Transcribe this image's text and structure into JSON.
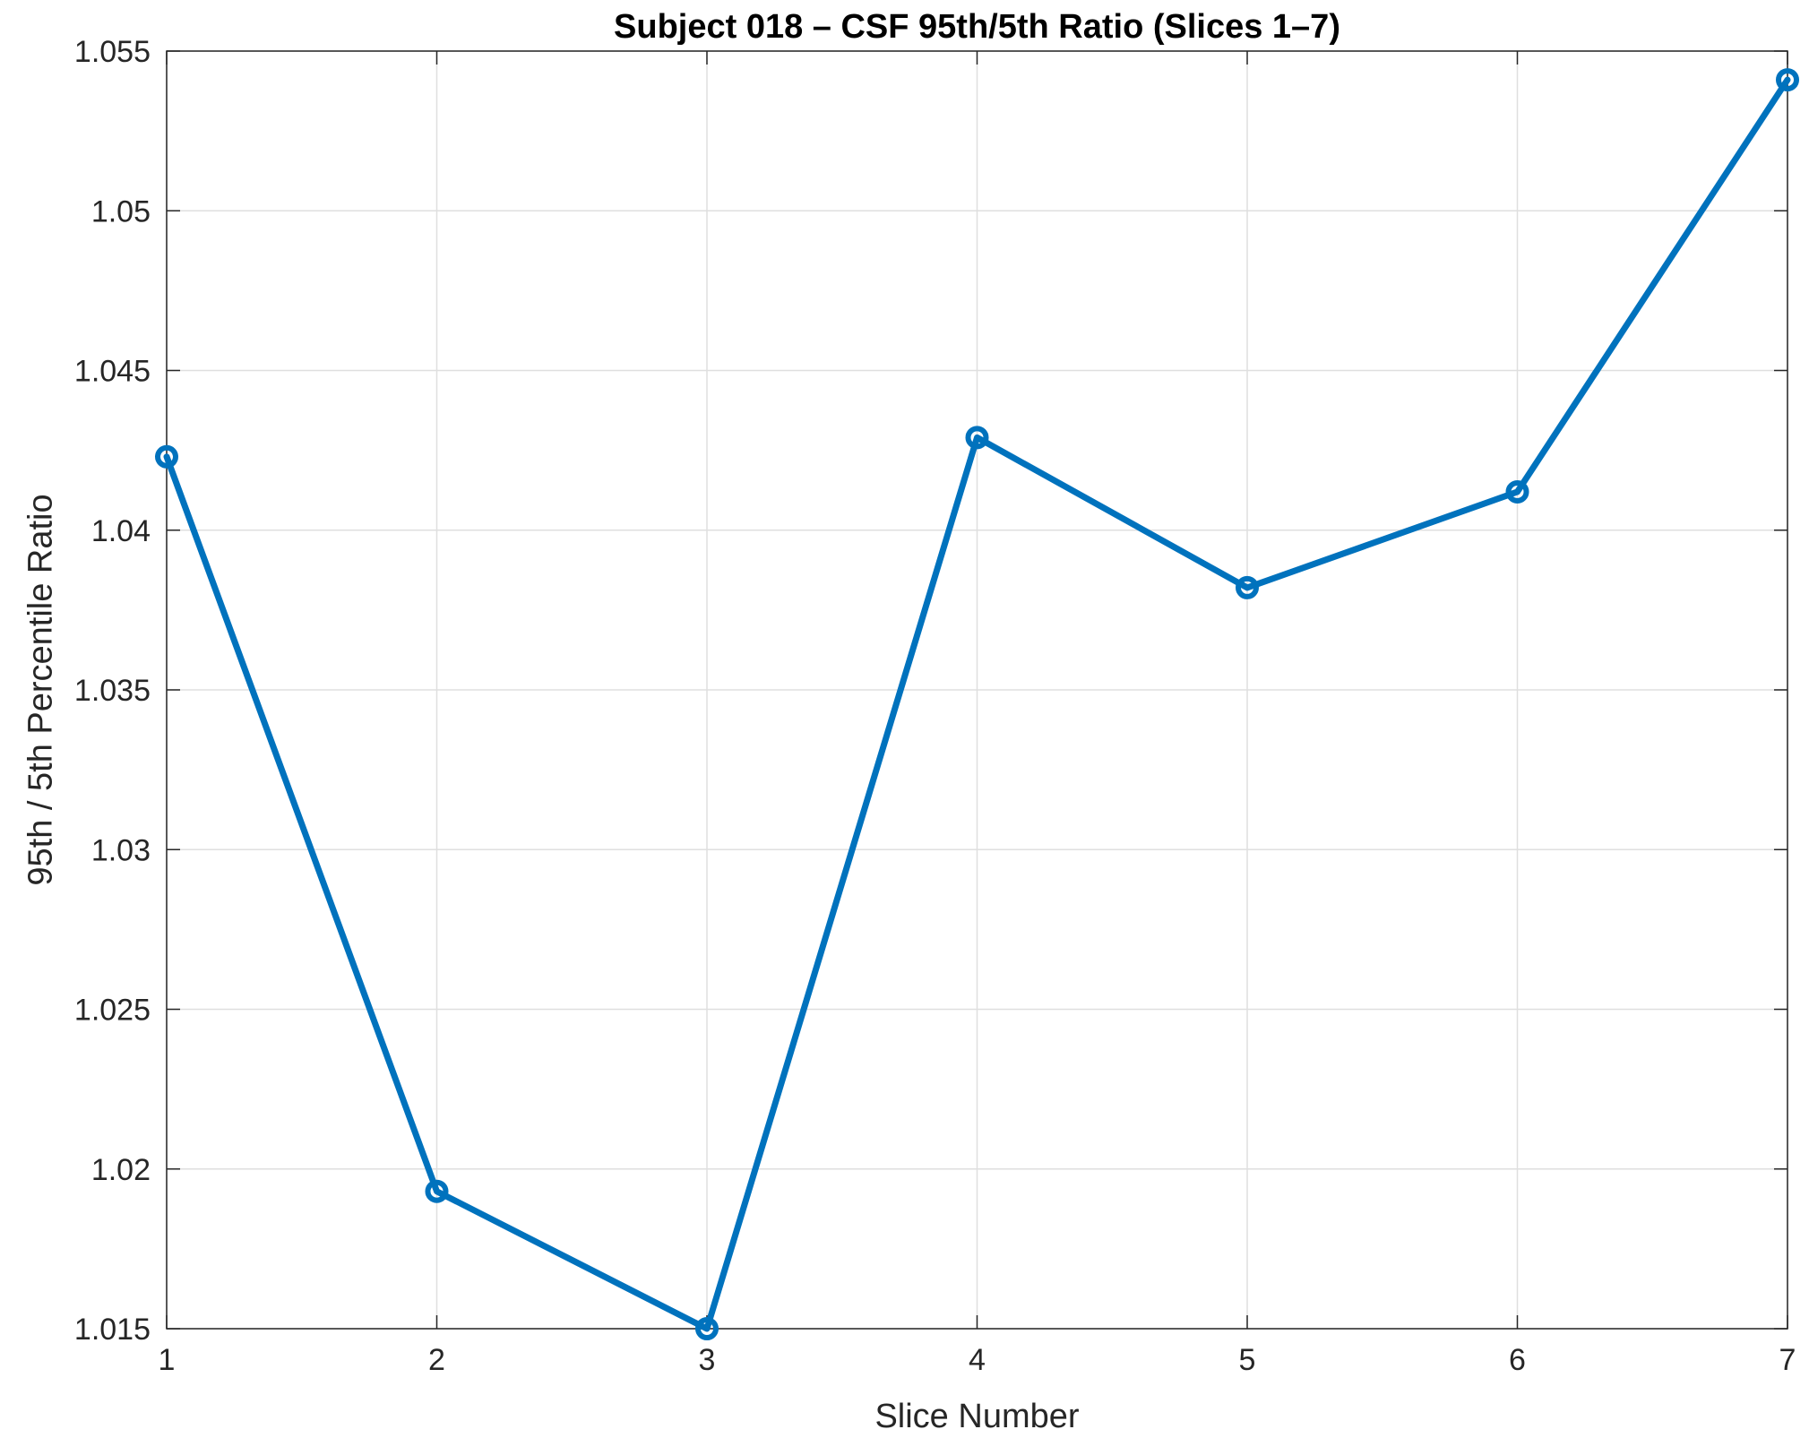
{
  "chart_data": {
    "type": "line",
    "title": "Subject 018 – CSF 95th/5th Ratio (Slices 1–7)",
    "xlabel": "Slice Number",
    "ylabel": "95th / 5th Percentile Ratio",
    "xlim": [
      1,
      7
    ],
    "ylim": [
      1.015,
      1.055
    ],
    "x_ticks": [
      "1",
      "2",
      "3",
      "4",
      "5",
      "6",
      "7"
    ],
    "y_ticks": [
      "1.015",
      "1.02",
      "1.025",
      "1.03",
      "1.035",
      "1.04",
      "1.045",
      "1.05",
      "1.055"
    ],
    "grid": true,
    "series": [
      {
        "color": "#0072BD",
        "marker": "circle",
        "x": [
          1,
          2,
          3,
          4,
          5,
          6,
          7
        ],
        "y": [
          1.0423,
          1.0193,
          1.015,
          1.0429,
          1.0382,
          1.0412,
          1.0541
        ]
      }
    ]
  }
}
